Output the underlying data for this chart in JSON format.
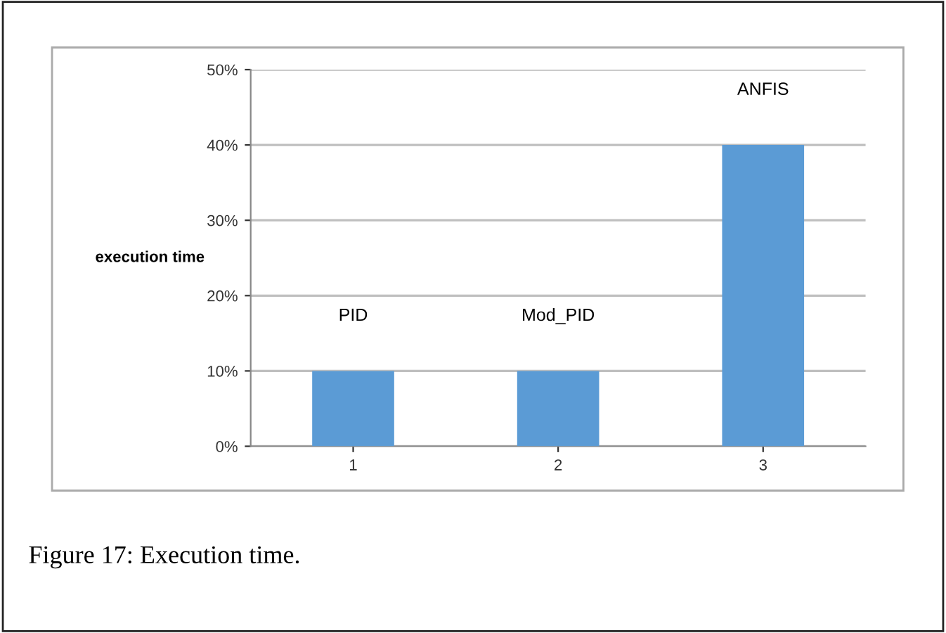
{
  "chart_data": {
    "type": "bar",
    "ylabel": "execution time",
    "categories": [
      "1",
      "2",
      "3"
    ],
    "values": [
      10,
      10,
      40
    ],
    "color": "#5b9bd5",
    "ylim": [
      0,
      50
    ],
    "yticks": [
      {
        "value": 0,
        "label": "0%"
      },
      {
        "value": 10,
        "label": "10%"
      },
      {
        "value": 20,
        "label": "20%"
      },
      {
        "value": 30,
        "label": "30%"
      },
      {
        "value": 40,
        "label": "40%"
      },
      {
        "value": 50,
        "label": "50%"
      }
    ],
    "grid": "y",
    "annotations": [
      "PID",
      "Mod_PID",
      "ANFIS",
      "Figure 17: Execution time."
    ]
  }
}
